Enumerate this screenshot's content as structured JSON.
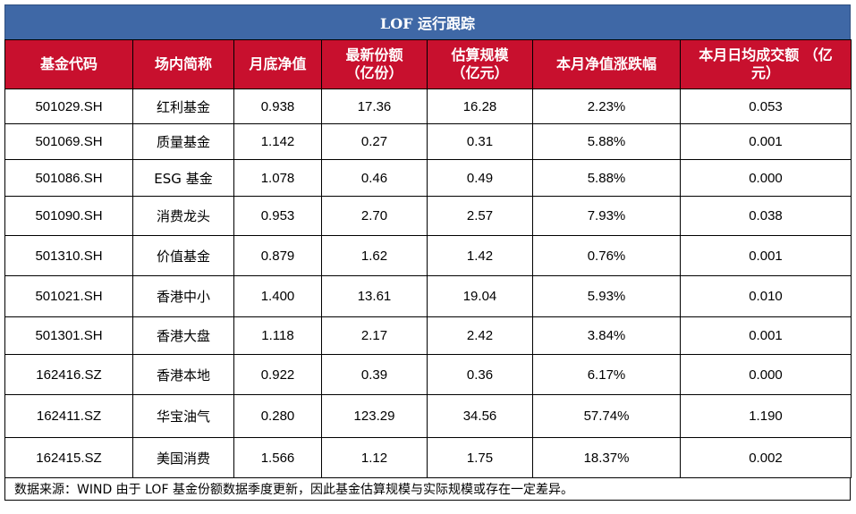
{
  "title": "LOF 运行跟踪",
  "columns": [
    [
      "基金代码"
    ],
    [
      "场内简称"
    ],
    [
      "月底净值"
    ],
    [
      "最新份额",
      "（亿份）"
    ],
    [
      "估算规模",
      "（亿元）"
    ],
    [
      "本月净值涨跌幅"
    ],
    [
      "本月日均成交额 （亿",
      "元）"
    ]
  ],
  "rows": [
    [
      "501029.SH",
      "红利基金",
      "0.938",
      "17.36",
      "16.28",
      "2.23%",
      "0.053"
    ],
    [
      "501069.SH",
      "质量基金",
      "1.142",
      "0.27",
      "0.31",
      "5.88%",
      "0.001"
    ],
    [
      "501086.SH",
      "ESG 基金",
      "1.078",
      "0.46",
      "0.49",
      "5.88%",
      "0.000"
    ],
    [
      "501090.SH",
      "消费龙头",
      "0.953",
      "2.70",
      "2.57",
      "7.93%",
      "0.038"
    ],
    [
      "501310.SH",
      "价值基金",
      "0.879",
      "1.62",
      "1.42",
      "0.76%",
      "0.001"
    ],
    [
      "501021.SH",
      "香港中小",
      "1.400",
      "13.61",
      "19.04",
      "5.93%",
      "0.010"
    ],
    [
      "501301.SH",
      "香港大盘",
      "1.118",
      "2.17",
      "2.42",
      "3.84%",
      "0.001"
    ],
    [
      "162416.SZ",
      "香港本地",
      "0.922",
      "0.39",
      "0.36",
      "6.17%",
      "0.000"
    ],
    [
      "162411.SZ",
      "华宝油气",
      "0.280",
      "123.29",
      "34.56",
      "57.74%",
      "1.190"
    ],
    [
      "162415.SZ",
      "美国消费",
      "1.566",
      "1.12",
      "1.75",
      "18.37%",
      "0.002"
    ]
  ],
  "footer": "数据来源：WIND 由于 LOF 基金份额数据季度更新，因此基金估算规模与实际规模或存在一定差异。",
  "colors": {
    "title_bg": "#3f68a6",
    "header_bg": "#c8102e"
  }
}
